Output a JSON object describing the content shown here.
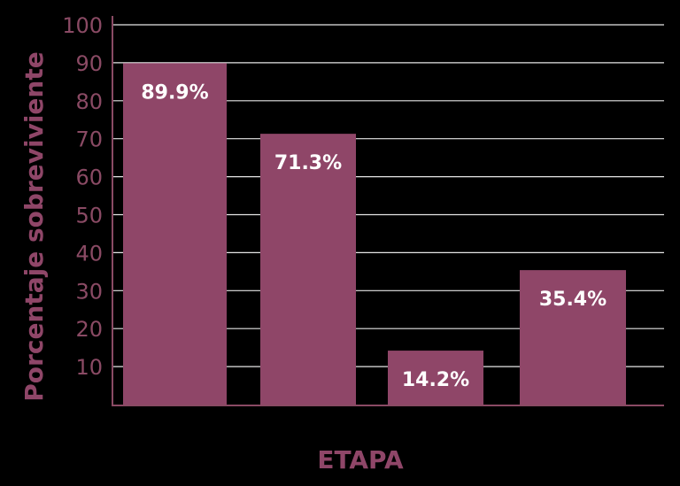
{
  "chart_data": {
    "type": "bar",
    "categories": [
      "",
      "",
      "",
      ""
    ],
    "values": [
      89.9,
      71.3,
      14.2,
      35.4
    ],
    "value_labels": [
      "89.9%",
      "71.3%",
      "14.2%",
      "35.4%"
    ],
    "title": "",
    "xlabel": "ETAPA",
    "ylabel": "Porcentaje sobreviviente",
    "ylim": [
      0,
      100
    ],
    "yticks": [
      10,
      20,
      30,
      40,
      50,
      60,
      70,
      80,
      90,
      100
    ],
    "grid": true,
    "legend": "none",
    "colors": {
      "bar": "#8f4668",
      "axis_text": "#8a4a64",
      "grid": "#ffffff",
      "axis_line": "#8a4a64",
      "bar_label": "#ffffff",
      "background": "#000000"
    }
  }
}
